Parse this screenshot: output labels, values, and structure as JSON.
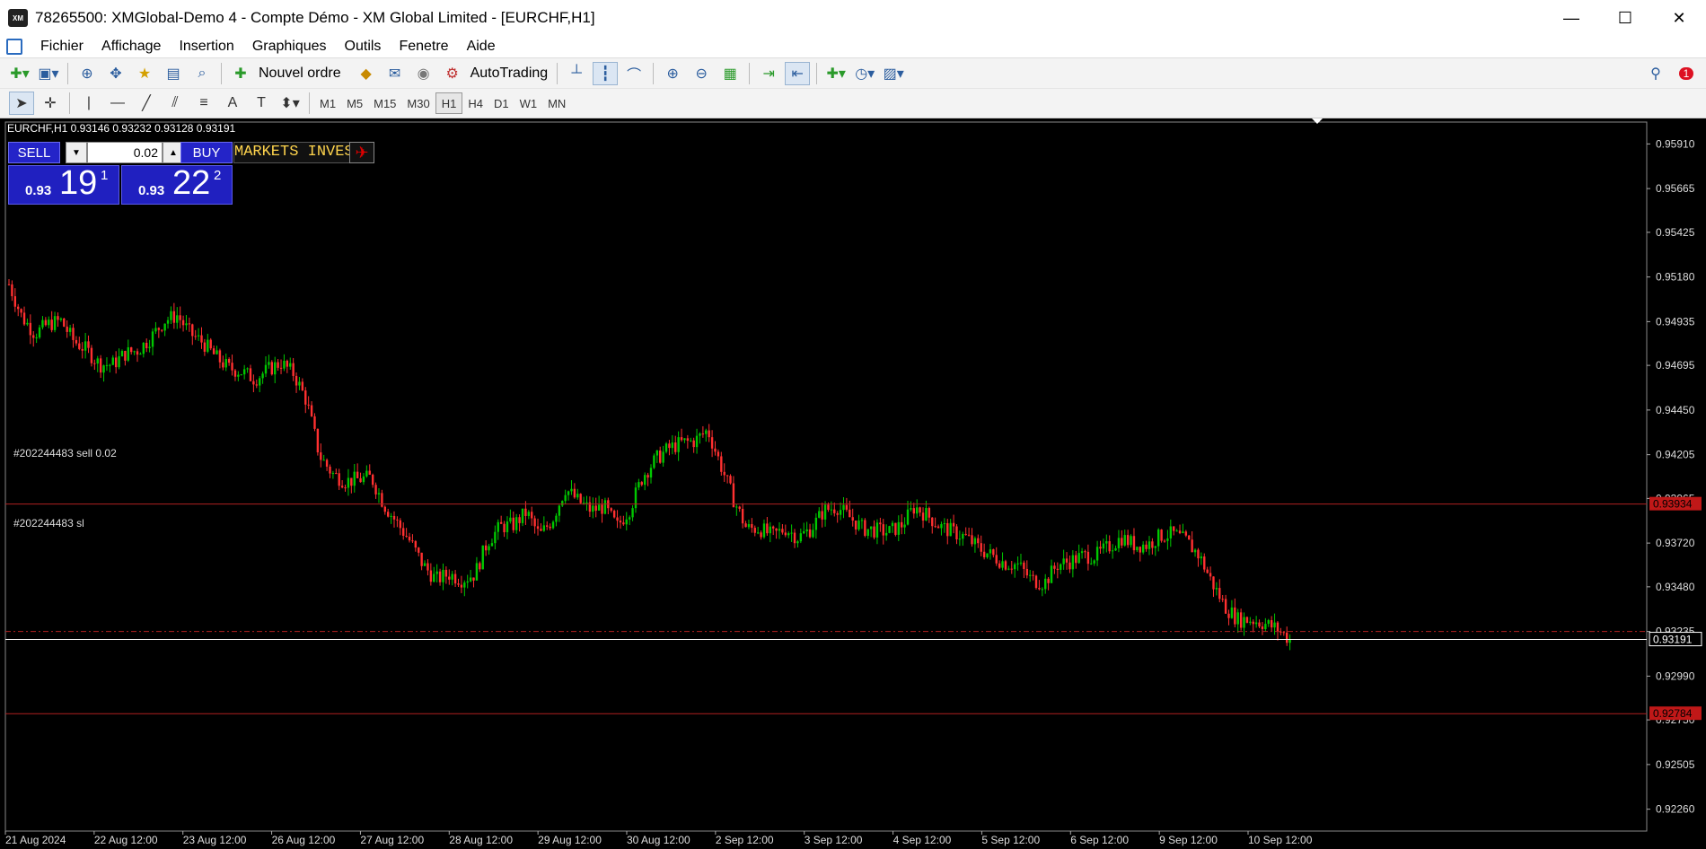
{
  "window": {
    "icon_text": "XM",
    "title": "78265500: XMGlobal-Demo 4 - Compte Démo - XM Global Limited - [EURCHF,H1]",
    "minimize": "—",
    "maximize": "☐",
    "close": "✕"
  },
  "menu": {
    "items": [
      "Fichier",
      "Affichage",
      "Insertion",
      "Graphiques",
      "Outils",
      "Fenetre",
      "Aide"
    ],
    "mdi_buttons": [
      "–",
      "⧉",
      "✕"
    ]
  },
  "toolbar": {
    "new_order_label": "Nouvel ordre",
    "autotrading_label": "AutoTrading",
    "notification_count": "1"
  },
  "timeframes": [
    "M1",
    "M5",
    "M15",
    "M30",
    "H1",
    "H4",
    "D1",
    "W1",
    "MN"
  ],
  "active_timeframe": "H1",
  "chart": {
    "symbol_line": "EURCHF,H1  0.93146 0.93232 0.93128 0.93191",
    "banner_text": "MARKETS INVEST",
    "trade_panel": {
      "sell_label": "SELL",
      "buy_label": "BUY",
      "lot_value": "0.02",
      "sell_prefix": "0.93",
      "sell_big": "19",
      "sell_sup": "1",
      "buy_prefix": "0.93",
      "buy_big": "22",
      "buy_sup": "2"
    },
    "order_label_1": "#202244483 sell 0.02",
    "order_label_2": "#202244483 sl",
    "price_axis": [
      "0.95910",
      "0.95665",
      "0.95425",
      "0.95180",
      "0.94935",
      "0.94695",
      "0.94450",
      "0.94205",
      "0.93965",
      "0.93720",
      "0.93480",
      "0.93235",
      "0.92990",
      "0.92750",
      "0.92505",
      "0.92260"
    ],
    "price_tags": {
      "entry": "0.93934",
      "stop_loss": "0.93235",
      "current": "0.93191",
      "take_profit": "0.92784"
    },
    "time_axis": [
      "21 Aug 2024",
      "22 Aug 12:00",
      "23 Aug 12:00",
      "26 Aug 12:00",
      "27 Aug 12:00",
      "28 Aug 12:00",
      "29 Aug 12:00",
      "30 Aug 12:00",
      "2 Sep 12:00",
      "3 Sep 12:00",
      "4 Sep 12:00",
      "5 Sep 12:00",
      "6 Sep 12:00",
      "9 Sep 12:00",
      "10 Sep 12:00"
    ],
    "colors": {
      "background": "#000000",
      "bull": "#00c800",
      "bear": "#ff3030",
      "order_line": "#b02020",
      "current_line": "#ffffff",
      "tag_red": "#c01818"
    }
  },
  "chart_data": {
    "type": "candlestick",
    "symbol": "EURCHF",
    "timeframe": "H1",
    "ylim": [
      0.9214,
      0.9603
    ],
    "x_categories": [
      "21 Aug 2024",
      "22 Aug 12:00",
      "23 Aug 12:00",
      "26 Aug 12:00",
      "27 Aug 12:00",
      "28 Aug 12:00",
      "29 Aug 12:00",
      "30 Aug 12:00",
      "2 Sep 12:00",
      "3 Sep 12:00",
      "4 Sep 12:00",
      "5 Sep 12:00",
      "6 Sep 12:00",
      "9 Sep 12:00",
      "10 Sep 12:00"
    ],
    "close_path": [
      0.9514,
      0.9496,
      0.9487,
      0.9492,
      0.9494,
      0.9483,
      0.9478,
      0.947,
      0.947,
      0.9476,
      0.9478,
      0.9485,
      0.9494,
      0.9497,
      0.9487,
      0.9482,
      0.9474,
      0.9468,
      0.9466,
      0.9462,
      0.9467,
      0.9471,
      0.9465,
      0.945,
      0.942,
      0.941,
      0.9406,
      0.9407,
      0.9408,
      0.9393,
      0.9383,
      0.9373,
      0.936,
      0.9352,
      0.9355,
      0.9352,
      0.9355,
      0.9373,
      0.9381,
      0.9382,
      0.9389,
      0.9376,
      0.9385,
      0.9402,
      0.9395,
      0.939,
      0.9392,
      0.9381,
      0.9391,
      0.9409,
      0.9418,
      0.9424,
      0.9427,
      0.9428,
      0.9434,
      0.9415,
      0.9396,
      0.938,
      0.938,
      0.9376,
      0.938,
      0.9375,
      0.938,
      0.939,
      0.9392,
      0.9386,
      0.938,
      0.9379,
      0.9378,
      0.9382,
      0.9392,
      0.9387,
      0.9381,
      0.9378,
      0.9375,
      0.9369,
      0.9365,
      0.9361,
      0.936,
      0.9352,
      0.935,
      0.936,
      0.9362,
      0.9365,
      0.9365,
      0.937,
      0.9375,
      0.9371,
      0.9371,
      0.9376,
      0.9377,
      0.9373,
      0.9365,
      0.935,
      0.9337,
      0.933,
      0.933,
      0.9328,
      0.9325,
      0.9319
    ],
    "horizontal_lines": {
      "entry": 0.93934,
      "stop_loss": 0.93235,
      "current": 0.93191,
      "take_profit": 0.92784
    }
  }
}
